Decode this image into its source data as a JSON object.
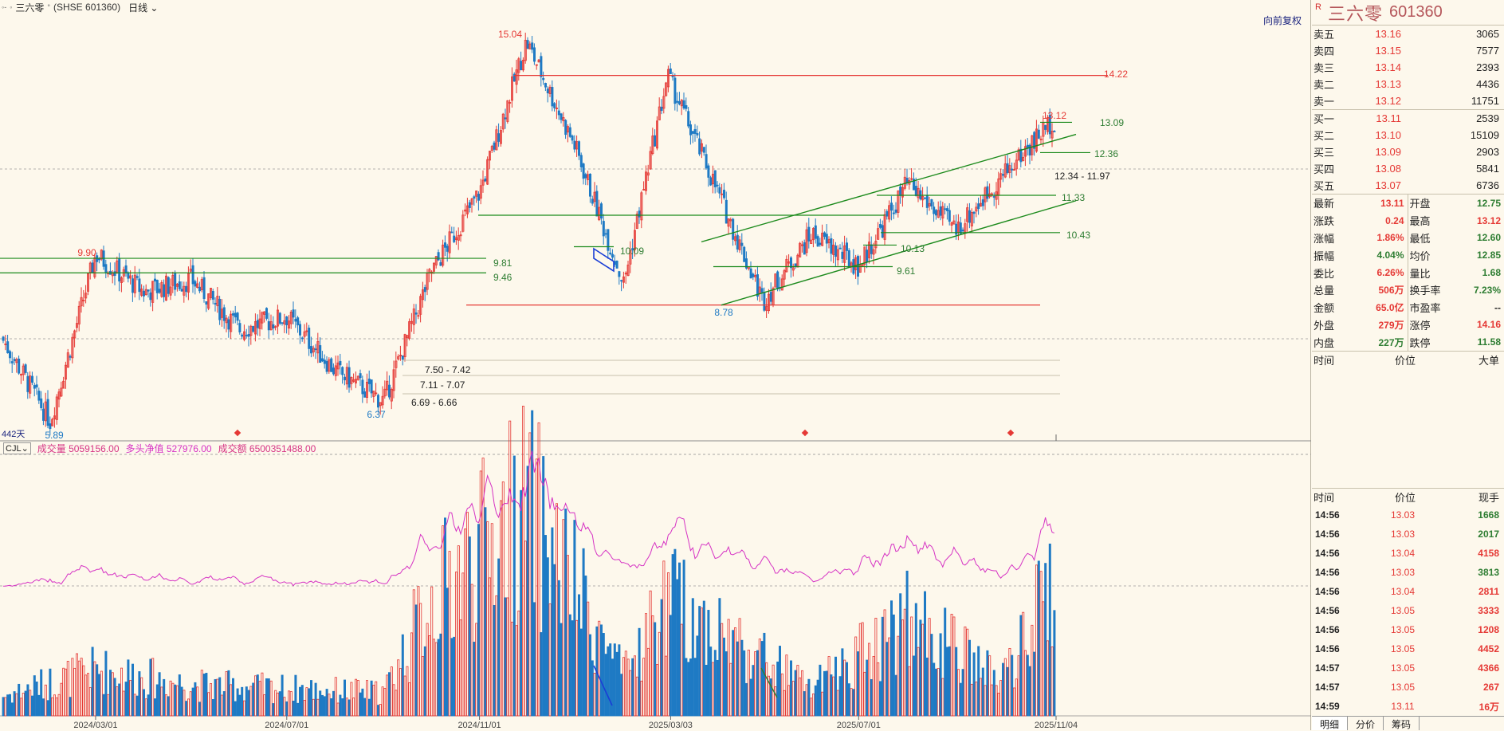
{
  "header": {
    "stock_name": "三六零",
    "stock_exchange_code": "(SHSE 601360)",
    "period": "日线",
    "back_adjust": "向前复权"
  },
  "side": {
    "flag": "R",
    "name": "三六零",
    "code": "601360",
    "sell": [
      {
        "label": "卖五",
        "price": "13.16",
        "vol": "3065"
      },
      {
        "label": "卖四",
        "price": "13.15",
        "vol": "7577"
      },
      {
        "label": "卖三",
        "price": "13.14",
        "vol": "2393"
      },
      {
        "label": "卖二",
        "price": "13.13",
        "vol": "4436"
      },
      {
        "label": "卖一",
        "price": "13.12",
        "vol": "11751"
      }
    ],
    "buy": [
      {
        "label": "买一",
        "price": "13.11",
        "vol": "2539"
      },
      {
        "label": "买二",
        "price": "13.10",
        "vol": "15109"
      },
      {
        "label": "买三",
        "price": "13.09",
        "vol": "2903"
      },
      {
        "label": "买四",
        "price": "13.08",
        "vol": "5841"
      },
      {
        "label": "买五",
        "price": "13.07",
        "vol": "6736"
      }
    ],
    "stats_left": [
      {
        "k": "最新",
        "v": "13.11",
        "c": "red"
      },
      {
        "k": "涨跌",
        "v": "0.24",
        "c": "red"
      },
      {
        "k": "涨幅",
        "v": "1.86%",
        "c": "red"
      },
      {
        "k": "振幅",
        "v": "4.04%",
        "c": "green"
      },
      {
        "k": "委比",
        "v": "6.26%",
        "c": "red"
      },
      {
        "k": "总量",
        "v": "506万",
        "c": "red"
      },
      {
        "k": "金额",
        "v": "65.0亿",
        "c": "red"
      },
      {
        "k": "外盘",
        "v": "279万",
        "c": "red"
      },
      {
        "k": "内盘",
        "v": "227万",
        "c": "green"
      }
    ],
    "stats_right": [
      {
        "k": "开盘",
        "v": "12.75",
        "c": "green"
      },
      {
        "k": "最高",
        "v": "13.12",
        "c": "red"
      },
      {
        "k": "最低",
        "v": "12.60",
        "c": "green"
      },
      {
        "k": "均价",
        "v": "12.85",
        "c": "green"
      },
      {
        "k": "量比",
        "v": "1.68",
        "c": "green"
      },
      {
        "k": "换手率",
        "v": "7.23%",
        "c": "green"
      },
      {
        "k": "市盈率",
        "v": "--",
        "c": "dk"
      },
      {
        "k": "涨停",
        "v": "14.16",
        "c": "red"
      },
      {
        "k": "跌停",
        "v": "11.58",
        "c": "green"
      }
    ],
    "big_head": {
      "c1": "时间",
      "c2": "价位",
      "c3": "大单"
    },
    "tick_head": {
      "c1": "时间",
      "c2": "价位",
      "c3": "现手"
    },
    "ticks": [
      {
        "t": "14:56",
        "p": "13.03",
        "v": "1668",
        "c": "green"
      },
      {
        "t": "14:56",
        "p": "13.03",
        "v": "2017",
        "c": "green"
      },
      {
        "t": "14:56",
        "p": "13.04",
        "v": "4158",
        "c": "red"
      },
      {
        "t": "14:56",
        "p": "13.03",
        "v": "3813",
        "c": "green"
      },
      {
        "t": "14:56",
        "p": "13.04",
        "v": "2811",
        "c": "red"
      },
      {
        "t": "14:56",
        "p": "13.05",
        "v": "3333",
        "c": "red"
      },
      {
        "t": "14:56",
        "p": "13.05",
        "v": "1208",
        "c": "red"
      },
      {
        "t": "14:56",
        "p": "13.05",
        "v": "4452",
        "c": "red"
      },
      {
        "t": "14:57",
        "p": "13.05",
        "v": "4366",
        "c": "red"
      },
      {
        "t": "14:57",
        "p": "13.05",
        "v": "267",
        "c": "red"
      },
      {
        "t": "14:59",
        "p": "13.11",
        "v": "16万",
        "c": "red"
      }
    ],
    "tabs": [
      "明细",
      "分价",
      "筹码"
    ]
  },
  "volume_legend": {
    "indicator": "CJL",
    "vol": "成交量 5059156.00",
    "net": "多头净值 527976.00",
    "amount": "成交额 6500351488.00"
  },
  "days_label": "442天",
  "colors": {
    "up": "#e53935",
    "down": "#1f7ac4",
    "bg": "#fdf8ec",
    "trend": "#1b8a1b",
    "hline": "#e53935",
    "vol_line": "#d633c4"
  },
  "chart_data": {
    "type": "candlestick",
    "x_tick_labels": [
      "2024/03/01",
      "2024/07/01",
      "2024/11/01",
      "2025/03/03",
      "2025/07/01",
      "2025/11/04"
    ],
    "price_labels": [
      {
        "text": "15.04",
        "color": "red"
      },
      {
        "text": "14.22",
        "color": "red"
      },
      {
        "text": "13.12",
        "color": "red"
      },
      {
        "text": "13.09",
        "color": "green"
      },
      {
        "text": "12.36",
        "color": "green"
      },
      {
        "text": "12.34 - 11.97",
        "color": "dark"
      },
      {
        "text": "11.33",
        "color": "green"
      },
      {
        "text": "10.43",
        "color": "green"
      },
      {
        "text": "10.13",
        "color": "green"
      },
      {
        "text": "10.09",
        "color": "green"
      },
      {
        "text": "9.90",
        "color": "red"
      },
      {
        "text": "9.81",
        "color": "green"
      },
      {
        "text": "9.61",
        "color": "green"
      },
      {
        "text": "9.46",
        "color": "green"
      },
      {
        "text": "8.78",
        "color": "blue"
      },
      {
        "text": "7.50 - 7.42",
        "color": "dark"
      },
      {
        "text": "7.11 - 7.07",
        "color": "dark"
      },
      {
        "text": "6.69 - 6.66",
        "color": "dark"
      },
      {
        "text": "6.37",
        "color": "blue"
      },
      {
        "text": "5.89",
        "color": "blue"
      }
    ],
    "path_keypoints": [
      {
        "date": "2024/01",
        "price": 7.9
      },
      {
        "date": "2024/02",
        "price": 5.89
      },
      {
        "date": "2024/03",
        "price": 9.9
      },
      {
        "date": "2024/04",
        "price": 9.0
      },
      {
        "date": "2024/05",
        "price": 9.3
      },
      {
        "date": "2024/06",
        "price": 8.1
      },
      {
        "date": "2024/07",
        "price": 8.4
      },
      {
        "date": "2024/08",
        "price": 7.1
      },
      {
        "date": "2024/09",
        "price": 6.37
      },
      {
        "date": "2024/10",
        "price": 9.46
      },
      {
        "date": "2024/11",
        "price": 11.4
      },
      {
        "date": "2024/12",
        "price": 15.04
      },
      {
        "date": "2025/01",
        "price": 12.5
      },
      {
        "date": "2025/02",
        "price": 9.2
      },
      {
        "date": "2025/03",
        "price": 14.22
      },
      {
        "date": "2025/04",
        "price": 11.5
      },
      {
        "date": "2025/05",
        "price": 8.78
      },
      {
        "date": "2025/06",
        "price": 10.4
      },
      {
        "date": "2025/07",
        "price": 9.61
      },
      {
        "date": "2025/08",
        "price": 11.6
      },
      {
        "date": "2025/09",
        "price": 10.5
      },
      {
        "date": "2025/10",
        "price": 11.8
      },
      {
        "date": "2025/11",
        "price": 13.12
      }
    ],
    "volume_keypoints": [
      {
        "date": "2024/01",
        "volume": 0.5
      },
      {
        "date": "2024/03",
        "volume": 1.2
      },
      {
        "date": "2024/05",
        "volume": 0.8
      },
      {
        "date": "2024/09",
        "volume": 0.6
      },
      {
        "date": "2024/10",
        "volume": 3.0
      },
      {
        "date": "2024/12",
        "volume": 5.5
      },
      {
        "date": "2025/02",
        "volume": 1.0
      },
      {
        "date": "2025/03",
        "volume": 3.0
      },
      {
        "date": "2025/06",
        "volume": 0.7
      },
      {
        "date": "2025/08",
        "volume": 2.5
      },
      {
        "date": "2025/10",
        "volume": 0.9
      },
      {
        "date": "2025/11",
        "volume": 3.3
      }
    ],
    "grid": true
  }
}
